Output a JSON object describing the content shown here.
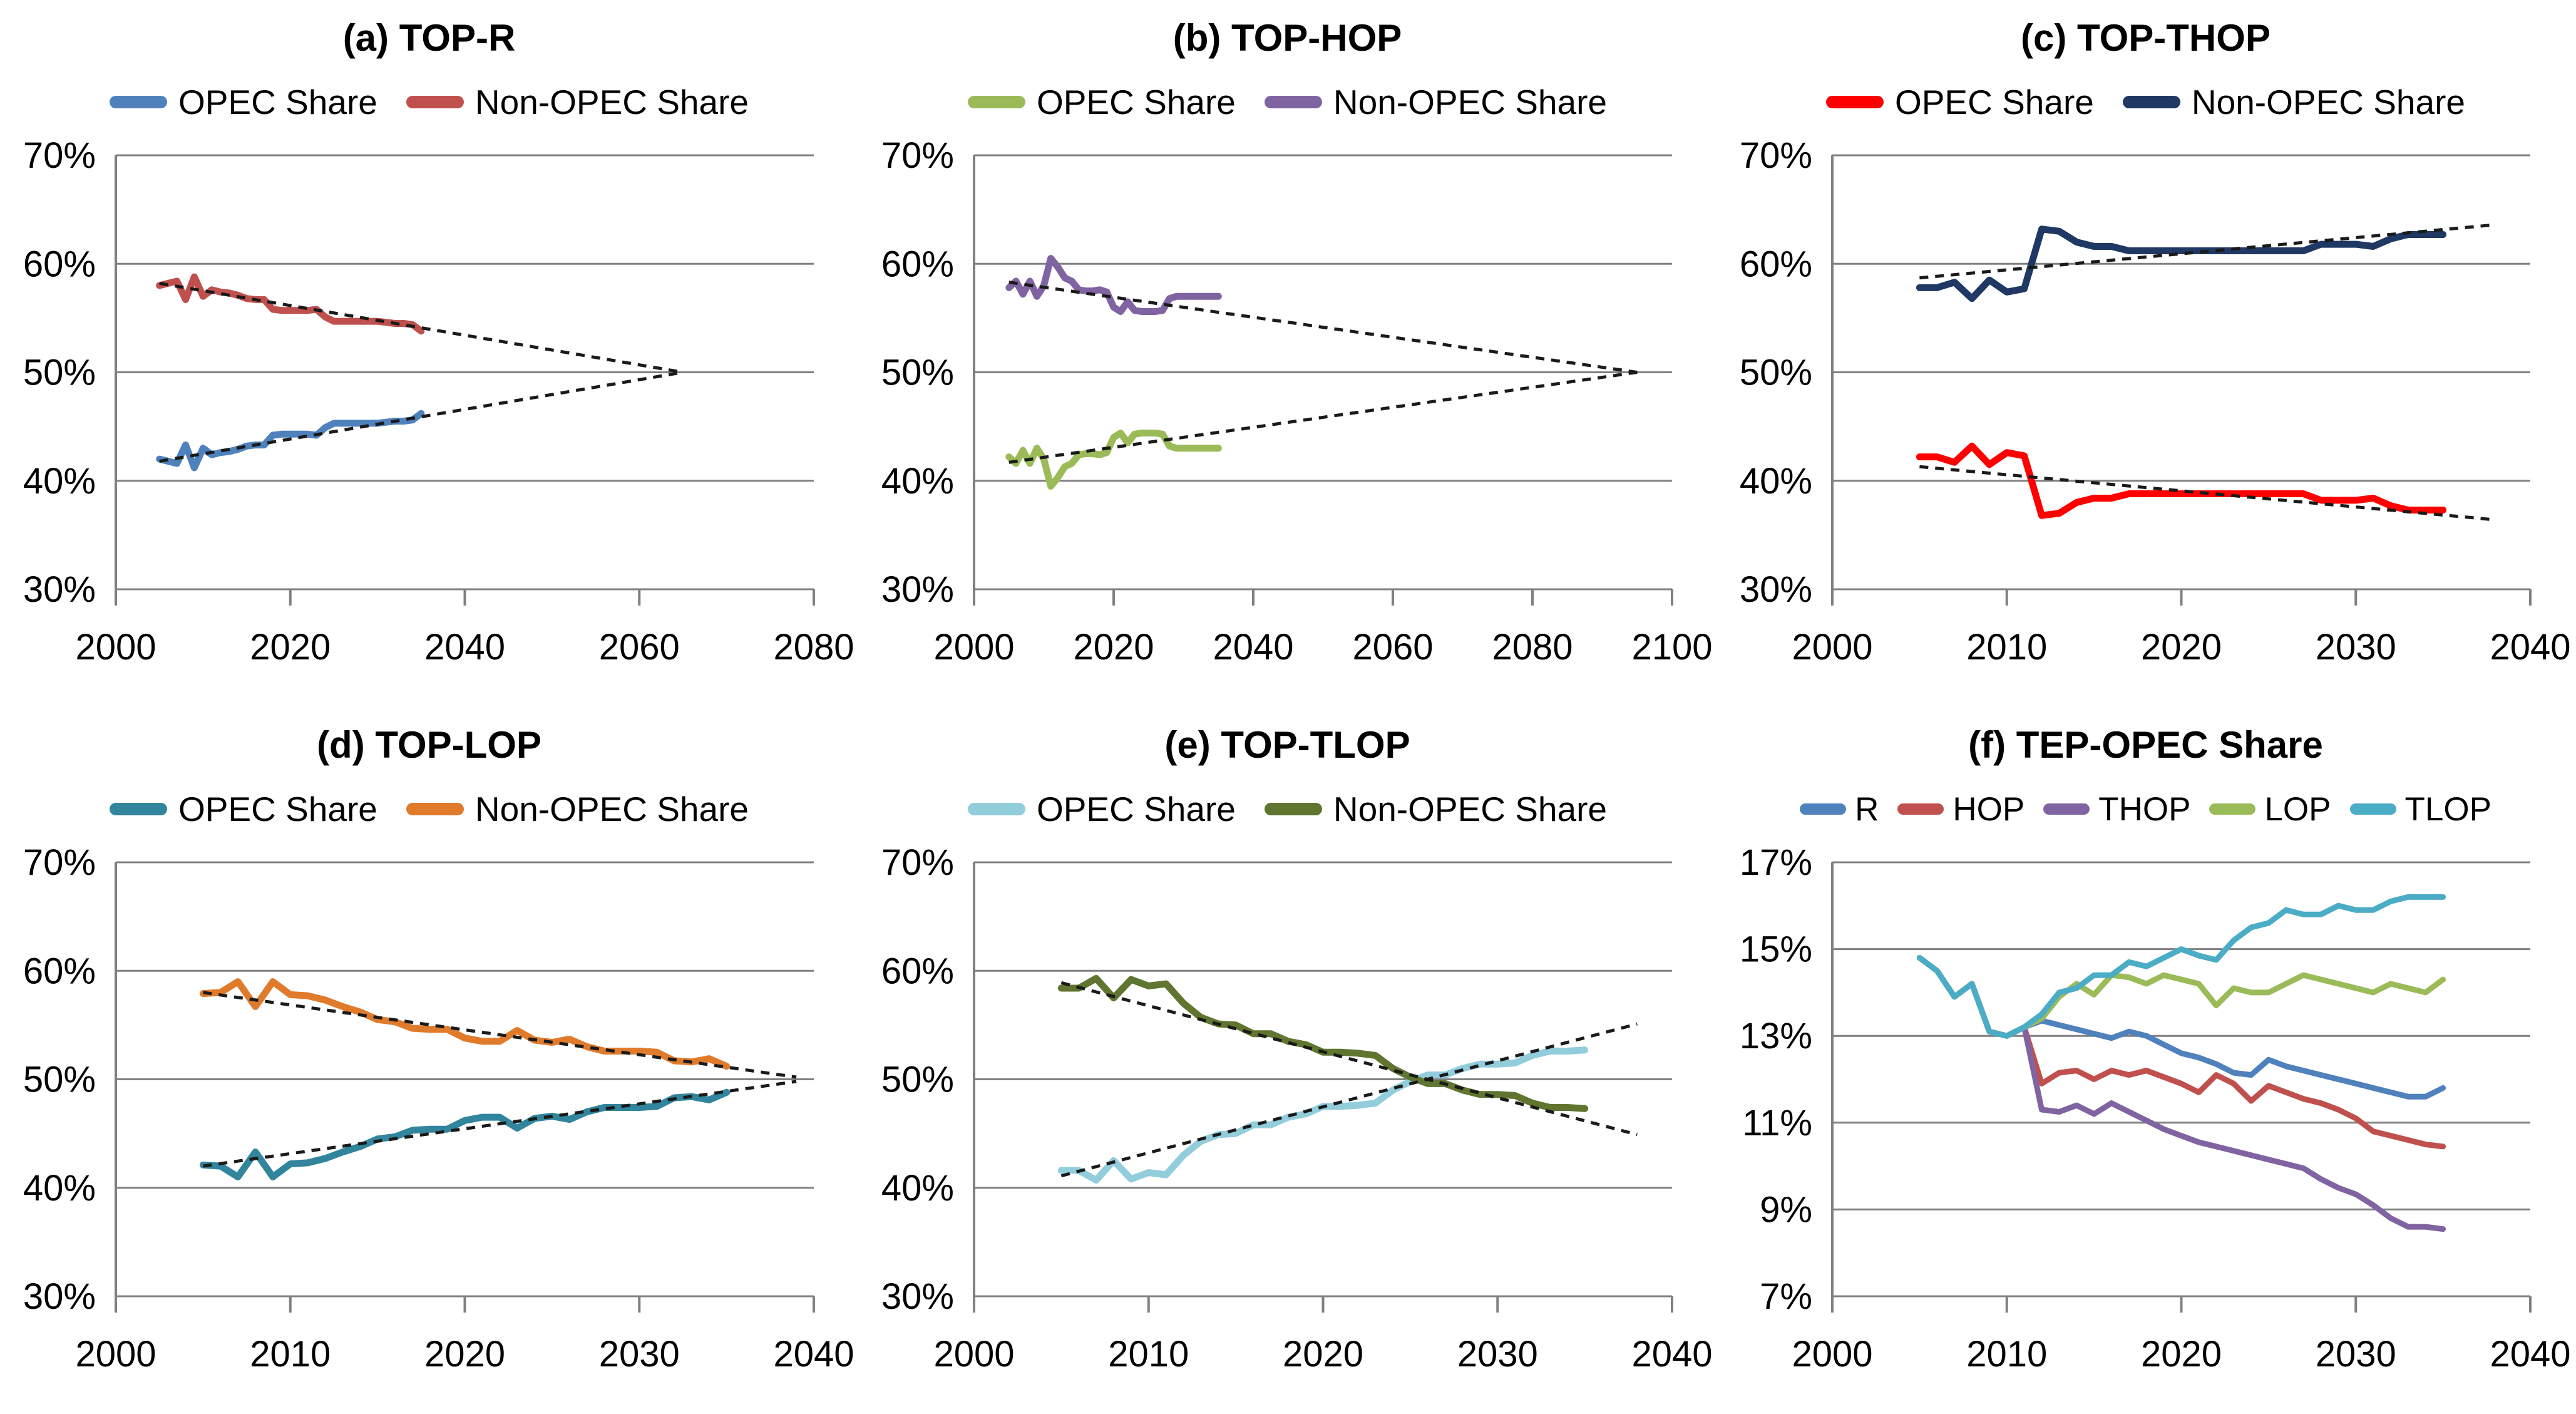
{
  "figure": {
    "background": "#ffffff",
    "grid_color": "#808080",
    "trend_color": "#1a1a1a",
    "axis_color": "#808080"
  },
  "chart_data": [
    {
      "id": "a",
      "type": "line",
      "title": "(a) TOP-R",
      "xlim": [
        2000,
        2080
      ],
      "x_ticks": [
        2000,
        2020,
        2040,
        2060,
        2080
      ],
      "ylim": [
        30,
        70
      ],
      "y_ticks": [
        30,
        40,
        50,
        60,
        70
      ],
      "y_tick_suffix": "%",
      "years": [
        2005,
        2006,
        2007,
        2008,
        2009,
        2010,
        2011,
        2012,
        2013,
        2014,
        2015,
        2016,
        2017,
        2018,
        2019,
        2020,
        2021,
        2022,
        2023,
        2024,
        2025,
        2026,
        2027,
        2028,
        2029,
        2030,
        2031,
        2032,
        2033,
        2034,
        2035
      ],
      "series": [
        {
          "name": "OPEC Share",
          "color": "#4F81BD",
          "values": [
            42.0,
            41.8,
            41.6,
            43.3,
            41.2,
            43.0,
            42.4,
            42.6,
            42.7,
            42.9,
            43.2,
            43.3,
            43.3,
            44.2,
            44.3,
            44.3,
            44.3,
            44.3,
            44.2,
            44.9,
            45.3,
            45.3,
            45.3,
            45.3,
            45.3,
            45.3,
            45.4,
            45.5,
            45.5,
            45.6,
            46.2
          ]
        },
        {
          "name": "Non-OPEC Share",
          "color": "#C0504D",
          "values": [
            58.0,
            58.2,
            58.4,
            56.7,
            58.8,
            57.0,
            57.6,
            57.4,
            57.3,
            57.1,
            56.8,
            56.7,
            56.7,
            55.8,
            55.7,
            55.7,
            55.7,
            55.7,
            55.8,
            55.1,
            54.7,
            54.7,
            54.7,
            54.7,
            54.7,
            54.7,
            54.6,
            54.5,
            54.5,
            54.4,
            53.8
          ]
        }
      ],
      "trend_lines": [
        {
          "x": [
            2005,
            2065
          ],
          "y": [
            41.8,
            50.0
          ]
        },
        {
          "x": [
            2005,
            2065
          ],
          "y": [
            58.2,
            50.0
          ]
        }
      ]
    },
    {
      "id": "b",
      "type": "line",
      "title": "(b) TOP-HOP",
      "xlim": [
        2000,
        2100
      ],
      "x_ticks": [
        2000,
        2020,
        2040,
        2060,
        2080,
        2100
      ],
      "ylim": [
        30,
        70
      ],
      "y_ticks": [
        30,
        40,
        50,
        60,
        70
      ],
      "y_tick_suffix": "%",
      "years": [
        2005,
        2006,
        2007,
        2008,
        2009,
        2010,
        2011,
        2012,
        2013,
        2014,
        2015,
        2016,
        2017,
        2018,
        2019,
        2020,
        2021,
        2022,
        2023,
        2024,
        2025,
        2026,
        2027,
        2028,
        2029,
        2030,
        2031,
        2032,
        2033,
        2034,
        2035
      ],
      "series": [
        {
          "name": "OPEC Share",
          "color": "#9BBB59",
          "values": [
            42.2,
            41.6,
            42.8,
            41.6,
            43.0,
            42.0,
            39.5,
            40.3,
            41.3,
            41.6,
            42.4,
            42.5,
            42.5,
            42.4,
            42.6,
            44.0,
            44.4,
            43.5,
            44.3,
            44.4,
            44.4,
            44.4,
            44.3,
            43.2,
            43.0,
            43.0,
            43.0,
            43.0,
            43.0,
            43.0,
            43.0
          ]
        },
        {
          "name": "Non-OPEC Share",
          "color": "#8064A2",
          "values": [
            57.8,
            58.4,
            57.2,
            58.4,
            57.0,
            58.0,
            60.5,
            59.7,
            58.7,
            58.4,
            57.6,
            57.5,
            57.5,
            57.6,
            57.4,
            56.0,
            55.6,
            56.5,
            55.7,
            55.6,
            55.6,
            55.6,
            55.7,
            56.8,
            57.0,
            57.0,
            57.0,
            57.0,
            57.0,
            57.0,
            57.0
          ]
        }
      ],
      "trend_lines": [
        {
          "x": [
            2005,
            2095
          ],
          "y": [
            41.7,
            50.0
          ]
        },
        {
          "x": [
            2005,
            2095
          ],
          "y": [
            58.3,
            50.0
          ]
        }
      ]
    },
    {
      "id": "c",
      "type": "line",
      "title": "(c) TOP-THOP",
      "xlim": [
        2000,
        2040
      ],
      "x_ticks": [
        2000,
        2010,
        2020,
        2030,
        2040
      ],
      "ylim": [
        30,
        70
      ],
      "y_ticks": [
        30,
        40,
        50,
        60,
        70
      ],
      "y_tick_suffix": "%",
      "years": [
        2005,
        2006,
        2007,
        2008,
        2009,
        2010,
        2011,
        2012,
        2013,
        2014,
        2015,
        2016,
        2017,
        2018,
        2019,
        2020,
        2021,
        2022,
        2023,
        2024,
        2025,
        2026,
        2027,
        2028,
        2029,
        2030,
        2031,
        2032,
        2033,
        2034,
        2035
      ],
      "series": [
        {
          "name": "OPEC Share",
          "color": "#FF0000",
          "values": [
            42.2,
            42.2,
            41.7,
            43.2,
            41.5,
            42.6,
            42.3,
            36.8,
            37.0,
            38.0,
            38.4,
            38.4,
            38.8,
            38.8,
            38.8,
            38.8,
            38.8,
            38.8,
            38.8,
            38.8,
            38.8,
            38.8,
            38.8,
            38.2,
            38.2,
            38.2,
            38.4,
            37.7,
            37.3,
            37.3,
            37.3
          ]
        },
        {
          "name": "Non-OPEC Share",
          "color": "#1F3864",
          "values": [
            57.8,
            57.8,
            58.3,
            56.8,
            58.5,
            57.4,
            57.7,
            63.2,
            63.0,
            62.0,
            61.6,
            61.6,
            61.2,
            61.2,
            61.2,
            61.2,
            61.2,
            61.2,
            61.2,
            61.2,
            61.2,
            61.2,
            61.2,
            61.8,
            61.8,
            61.8,
            61.6,
            62.3,
            62.7,
            62.7,
            62.7
          ]
        }
      ],
      "trend_lines": [
        {
          "x": [
            2005,
            2038
          ],
          "y": [
            41.3,
            36.4
          ]
        },
        {
          "x": [
            2005,
            2038
          ],
          "y": [
            58.7,
            63.6
          ]
        }
      ]
    },
    {
      "id": "d",
      "type": "line",
      "title": "(d) TOP-LOP",
      "xlim": [
        2000,
        2040
      ],
      "x_ticks": [
        2000,
        2010,
        2020,
        2030,
        2040
      ],
      "ylim": [
        30,
        70
      ],
      "y_ticks": [
        30,
        40,
        50,
        60,
        70
      ],
      "y_tick_suffix": "%",
      "years": [
        2005,
        2006,
        2007,
        2008,
        2009,
        2010,
        2011,
        2012,
        2013,
        2014,
        2015,
        2016,
        2017,
        2018,
        2019,
        2020,
        2021,
        2022,
        2023,
        2024,
        2025,
        2026,
        2027,
        2028,
        2029,
        2030,
        2031,
        2032,
        2033,
        2034,
        2035
      ],
      "series": [
        {
          "name": "OPEC Share",
          "color": "#31859C",
          "values": [
            42.1,
            42.0,
            41.0,
            43.3,
            41.0,
            42.2,
            42.3,
            42.7,
            43.3,
            43.8,
            44.5,
            44.7,
            45.3,
            45.4,
            45.4,
            46.2,
            46.5,
            46.5,
            45.5,
            46.4,
            46.6,
            46.3,
            47.0,
            47.4,
            47.4,
            47.4,
            47.5,
            48.3,
            48.4,
            48.1,
            48.8
          ]
        },
        {
          "name": "Non-OPEC Share",
          "color": "#E07B2C",
          "values": [
            57.9,
            58.0,
            59.0,
            56.7,
            59.0,
            57.8,
            57.7,
            57.3,
            56.7,
            56.2,
            55.5,
            55.3,
            54.7,
            54.6,
            54.6,
            53.8,
            53.5,
            53.5,
            54.5,
            53.6,
            53.4,
            53.7,
            53.0,
            52.6,
            52.6,
            52.6,
            52.5,
            51.7,
            51.6,
            51.9,
            51.2
          ]
        }
      ],
      "trend_lines": [
        {
          "x": [
            2005,
            2039
          ],
          "y": [
            42.0,
            49.8
          ]
        },
        {
          "x": [
            2005,
            2039
          ],
          "y": [
            58.0,
            50.2
          ]
        }
      ]
    },
    {
      "id": "e",
      "type": "line",
      "title": "(e) TOP-TLOP",
      "xlim": [
        2000,
        2040
      ],
      "x_ticks": [
        2000,
        2010,
        2020,
        2030,
        2040
      ],
      "ylim": [
        30,
        70
      ],
      "y_ticks": [
        30,
        40,
        50,
        60,
        70
      ],
      "y_tick_suffix": "%",
      "years": [
        2005,
        2006,
        2007,
        2008,
        2009,
        2010,
        2011,
        2012,
        2013,
        2014,
        2015,
        2016,
        2017,
        2018,
        2019,
        2020,
        2021,
        2022,
        2023,
        2024,
        2025,
        2026,
        2027,
        2028,
        2029,
        2030,
        2031,
        2032,
        2033,
        2034,
        2035
      ],
      "series": [
        {
          "name": "OPEC Share",
          "color": "#92CDDC",
          "values": [
            41.6,
            41.6,
            40.7,
            42.5,
            40.8,
            41.4,
            41.2,
            43.0,
            44.3,
            44.9,
            45.0,
            45.8,
            45.8,
            46.5,
            46.8,
            47.5,
            47.5,
            47.6,
            47.8,
            49.0,
            49.8,
            50.4,
            50.4,
            51.0,
            51.4,
            51.4,
            51.5,
            52.2,
            52.6,
            52.6,
            52.7
          ]
        },
        {
          "name": "Non-OPEC Share",
          "color": "#5F7530",
          "values": [
            58.4,
            58.4,
            59.3,
            57.5,
            59.2,
            58.6,
            58.8,
            57.0,
            55.7,
            55.1,
            55.0,
            54.2,
            54.2,
            53.5,
            53.2,
            52.5,
            52.5,
            52.4,
            52.2,
            51.0,
            50.2,
            49.6,
            49.6,
            49.0,
            48.6,
            48.6,
            48.5,
            47.8,
            47.4,
            47.4,
            47.3
          ]
        }
      ],
      "trend_lines": [
        {
          "x": [
            2005,
            2038
          ],
          "y": [
            41.1,
            55.1
          ]
        },
        {
          "x": [
            2005,
            2038
          ],
          "y": [
            58.9,
            44.9
          ]
        }
      ]
    },
    {
      "id": "f",
      "type": "line",
      "title": "(f) TEP-OPEC Share",
      "xlim": [
        2000,
        2040
      ],
      "x_ticks": [
        2000,
        2010,
        2020,
        2030,
        2040
      ],
      "ylim": [
        7,
        17
      ],
      "y_ticks": [
        7,
        9,
        11,
        13,
        15,
        17
      ],
      "y_tick_suffix": "%",
      "years": [
        2005,
        2006,
        2007,
        2008,
        2009,
        2010,
        2011,
        2012,
        2013,
        2014,
        2015,
        2016,
        2017,
        2018,
        2019,
        2020,
        2021,
        2022,
        2023,
        2024,
        2025,
        2026,
        2027,
        2028,
        2029,
        2030,
        2031,
        2032,
        2033,
        2034,
        2035
      ],
      "series": [
        {
          "name": "R",
          "color": "#4F81BD",
          "values": [
            14.8,
            14.5,
            13.9,
            14.2,
            13.1,
            13.0,
            13.2,
            13.35,
            13.25,
            13.15,
            13.05,
            12.95,
            13.1,
            13.0,
            12.8,
            12.6,
            12.5,
            12.35,
            12.15,
            12.1,
            12.45,
            12.3,
            12.2,
            12.1,
            12.0,
            11.9,
            11.8,
            11.7,
            11.6,
            11.6,
            11.8
          ]
        },
        {
          "name": "HOP",
          "color": "#C0504D",
          "values": [
            14.8,
            14.5,
            13.9,
            14.2,
            13.1,
            13.0,
            13.2,
            11.9,
            12.15,
            12.2,
            12.0,
            12.2,
            12.1,
            12.2,
            12.05,
            11.9,
            11.7,
            12.1,
            11.9,
            11.5,
            11.85,
            11.7,
            11.55,
            11.45,
            11.3,
            11.1,
            10.8,
            10.7,
            10.6,
            10.5,
            10.45
          ]
        },
        {
          "name": "THOP",
          "color": "#8064A2",
          "values": [
            14.8,
            14.5,
            13.9,
            14.2,
            13.1,
            13.0,
            13.2,
            11.3,
            11.25,
            11.4,
            11.2,
            11.45,
            11.25,
            11.05,
            10.85,
            10.7,
            10.55,
            10.45,
            10.35,
            10.25,
            10.15,
            10.05,
            9.95,
            9.7,
            9.5,
            9.35,
            9.1,
            8.8,
            8.6,
            8.6,
            8.55
          ]
        },
        {
          "name": "LOP",
          "color": "#9BBB59",
          "values": [
            14.8,
            14.5,
            13.9,
            14.2,
            13.1,
            13.0,
            13.2,
            13.4,
            13.9,
            14.2,
            13.95,
            14.4,
            14.35,
            14.2,
            14.4,
            14.3,
            14.2,
            13.7,
            14.1,
            14.0,
            14.0,
            14.2,
            14.4,
            14.3,
            14.2,
            14.1,
            14.0,
            14.2,
            14.1,
            14.0,
            14.3
          ]
        },
        {
          "name": "TLOP",
          "color": "#4BACC6",
          "values": [
            14.8,
            14.5,
            13.9,
            14.2,
            13.1,
            13.0,
            13.2,
            13.5,
            14.0,
            14.1,
            14.4,
            14.4,
            14.7,
            14.6,
            14.8,
            15.0,
            14.85,
            14.75,
            15.2,
            15.5,
            15.6,
            15.9,
            15.8,
            15.8,
            16.0,
            15.9,
            15.9,
            16.1,
            16.2,
            16.2,
            16.2
          ]
        }
      ],
      "trend_lines": []
    }
  ]
}
